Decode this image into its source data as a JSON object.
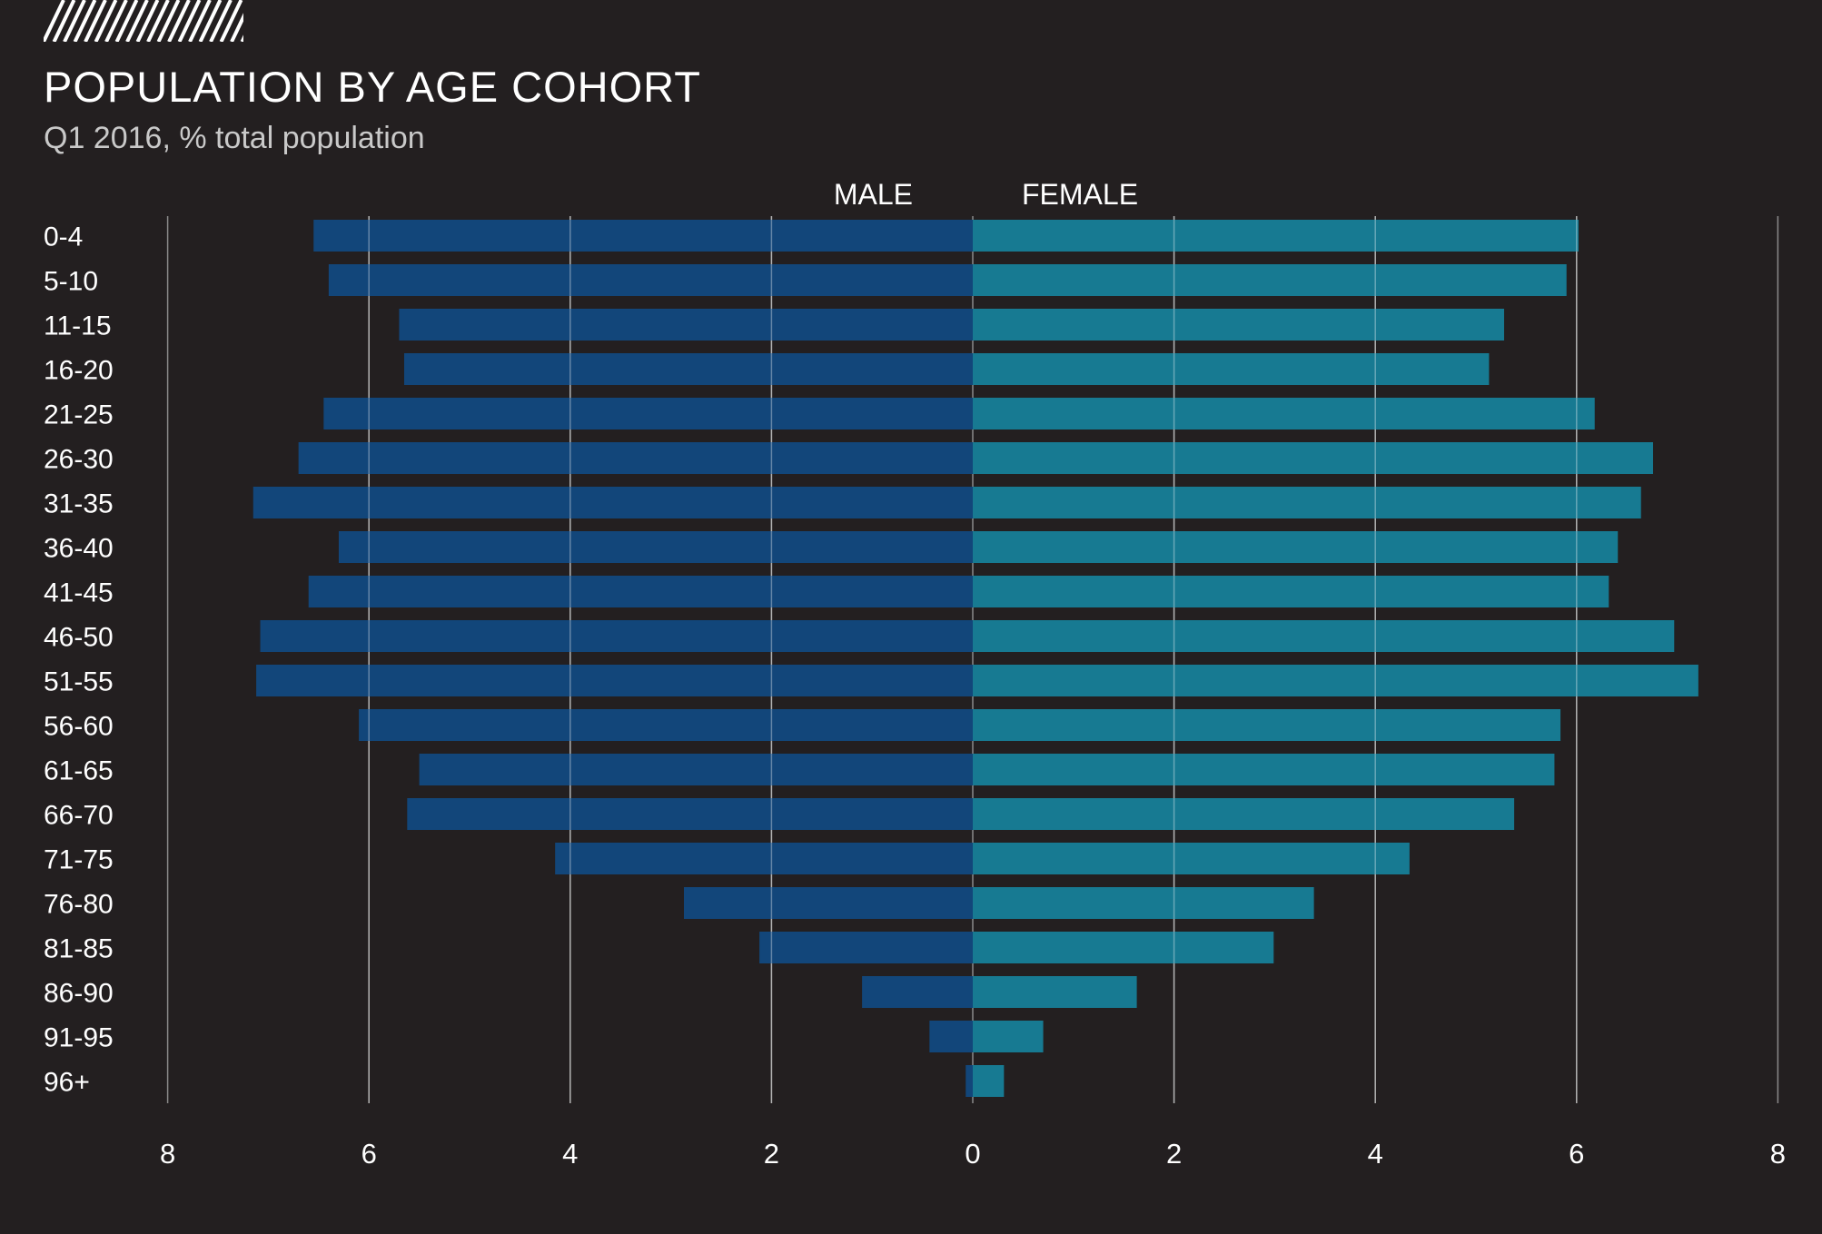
{
  "title": "POPULATION BY AGE COHORT",
  "subtitle": "Q1 2016, % total population",
  "colors": {
    "background": "#231f20",
    "male": "#12467a",
    "female": "#177a92",
    "grid": "#8a8a8a"
  },
  "chart_data": {
    "type": "bar",
    "orientation": "horizontal-butterfly",
    "title": "POPULATION BY AGE COHORT",
    "subtitle": "Q1 2016, % total population",
    "categories": [
      "0-4",
      "5-10",
      "11-15",
      "16-20",
      "21-25",
      "26-30",
      "31-35",
      "36-40",
      "41-45",
      "46-50",
      "51-55",
      "56-60",
      "61-65",
      "66-70",
      "71-75",
      "76-80",
      "81-85",
      "86-90",
      "91-95",
      "96+"
    ],
    "series": [
      {
        "name": "MALE",
        "side": "left",
        "values": [
          6.55,
          6.4,
          5.7,
          5.65,
          6.45,
          6.7,
          7.15,
          6.3,
          6.6,
          7.08,
          7.12,
          6.1,
          5.5,
          5.62,
          4.15,
          2.87,
          2.12,
          1.1,
          0.43,
          0.07
        ]
      },
      {
        "name": "FEMALE",
        "side": "right",
        "values": [
          6.02,
          5.9,
          5.28,
          5.13,
          6.18,
          6.76,
          6.64,
          6.41,
          6.32,
          6.97,
          7.21,
          5.84,
          5.78,
          5.38,
          4.34,
          3.39,
          2.99,
          1.63,
          0.7,
          0.31
        ]
      }
    ],
    "x_ticks_left": [
      "8",
      "6",
      "4",
      "2"
    ],
    "x_ticks_right": [
      "0",
      "2",
      "4",
      "6",
      "8"
    ],
    "xlim": [
      -8,
      8
    ],
    "grid": true
  }
}
